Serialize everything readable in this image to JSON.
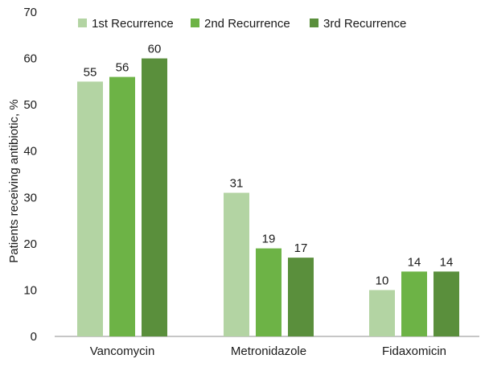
{
  "chart_data": {
    "type": "bar",
    "categories": [
      "Vancomycin",
      "Metronidazole",
      "Fidaxomicin"
    ],
    "series": [
      {
        "name": "1st Recurrence",
        "values": [
          55,
          31,
          10
        ],
        "color": "#b3d4a3"
      },
      {
        "name": "2nd Recurrence",
        "values": [
          56,
          19,
          14
        ],
        "color": "#6db346"
      },
      {
        "name": "3rd Recurrence",
        "values": [
          60,
          17,
          14
        ],
        "color": "#5a8f3c"
      }
    ],
    "ylabel": "Patients receiving antibiotic, %",
    "ylim": [
      0,
      70
    ],
    "yticks": [
      0,
      10,
      20,
      30,
      40,
      50,
      60,
      70
    ],
    "grid": false,
    "legend": "top",
    "data_labels": true
  }
}
